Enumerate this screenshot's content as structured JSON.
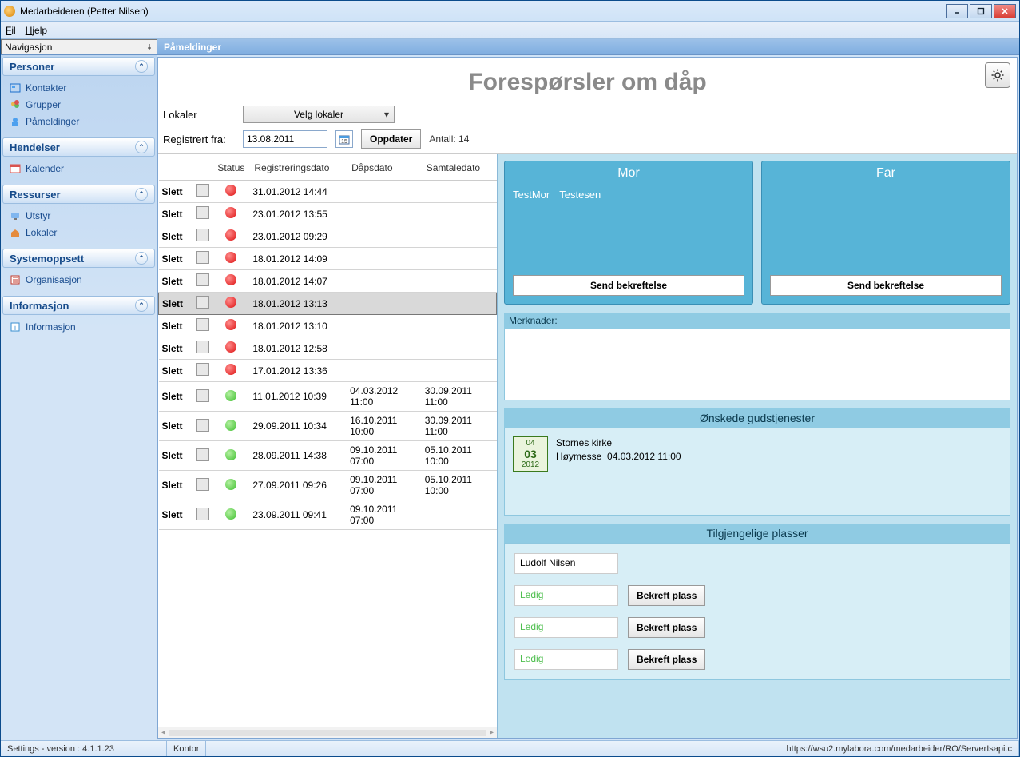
{
  "window": {
    "title": "Medarbeideren (Petter Nilsen)"
  },
  "menu": {
    "file": "Fil",
    "help": "Hjelp",
    "file_u": "F",
    "help_u": "H"
  },
  "nav": {
    "header": "Navigasjon",
    "tab": "Påmeldinger",
    "groups": {
      "personer": "Personer",
      "hendelser": "Hendelser",
      "ressurser": "Ressurser",
      "systemoppsett": "Systemoppsett",
      "informasjon": "Informasjon"
    },
    "items": {
      "kontakter": "Kontakter",
      "grupper": "Grupper",
      "pameldinger": "Påmeldinger",
      "kalender": "Kalender",
      "utstyr": "Utstyr",
      "lokaler": "Lokaler",
      "organisasjon": "Organisasjon",
      "informasjon": "Informasjon"
    }
  },
  "page": {
    "title": "Forespørsler om dåp"
  },
  "filters": {
    "lokaler_label": "Lokaler",
    "lokaler_combo": "Velg lokaler",
    "registrert_label": "Registrert fra:",
    "date_value": "13.08.2011",
    "update_btn": "Oppdater",
    "count_label": "Antall:",
    "count": "14"
  },
  "grid": {
    "headers": {
      "status": "Status",
      "registrert": "Registreringsdato",
      "dap": "Dåpsdato",
      "samtale": "Samtaledato"
    },
    "delete_label": "Slett",
    "rows": [
      {
        "status": "red",
        "reg": "31.01.2012 14:44",
        "dap": "",
        "samt": "",
        "sel": false
      },
      {
        "status": "red",
        "reg": "23.01.2012 13:55",
        "dap": "",
        "samt": "",
        "sel": false
      },
      {
        "status": "red",
        "reg": "23.01.2012 09:29",
        "dap": "",
        "samt": "",
        "sel": false
      },
      {
        "status": "red",
        "reg": "18.01.2012 14:09",
        "dap": "",
        "samt": "",
        "sel": false
      },
      {
        "status": "red",
        "reg": "18.01.2012 14:07",
        "dap": "",
        "samt": "",
        "sel": false
      },
      {
        "status": "red",
        "reg": "18.01.2012 13:13",
        "dap": "",
        "samt": "",
        "sel": true
      },
      {
        "status": "red",
        "reg": "18.01.2012 13:10",
        "dap": "",
        "samt": "",
        "sel": false
      },
      {
        "status": "red",
        "reg": "18.01.2012 12:58",
        "dap": "",
        "samt": "",
        "sel": false
      },
      {
        "status": "red",
        "reg": "17.01.2012 13:36",
        "dap": "",
        "samt": "",
        "sel": false
      },
      {
        "status": "green",
        "reg": "11.01.2012 10:39",
        "dap": "04.03.2012 11:00",
        "samt": "30.09.2011 11:00",
        "sel": false
      },
      {
        "status": "green",
        "reg": "29.09.2011 10:34",
        "dap": "16.10.2011 10:00",
        "samt": "30.09.2011 11:00",
        "sel": false
      },
      {
        "status": "green",
        "reg": "28.09.2011 14:38",
        "dap": "09.10.2011 07:00",
        "samt": "05.10.2011 10:00",
        "sel": false
      },
      {
        "status": "green",
        "reg": "27.09.2011 09:26",
        "dap": "09.10.2011 07:00",
        "samt": "05.10.2011 10:00",
        "sel": false
      },
      {
        "status": "green",
        "reg": "23.09.2011 09:41",
        "dap": "09.10.2011 07:00",
        "samt": "",
        "sel": false
      }
    ]
  },
  "parents": {
    "mor_title": "Mor",
    "far_title": "Far",
    "mor_first": "TestMor",
    "mor_last": "Testesen",
    "send_btn": "Send bekreftelse"
  },
  "notes": {
    "label": "Merknader:"
  },
  "wishes": {
    "title": "Ønskede gudstjenester",
    "chip_top": "04",
    "chip_mid": "03",
    "chip_bot": "2012",
    "church": "Stornes kirke",
    "service": "Høymesse",
    "service_dt": "04.03.2012 11:00"
  },
  "avail": {
    "title": "Tilgjengelige plasser",
    "taken": "Ludolf Nilsen",
    "free_label": "Ledig",
    "confirm_btn": "Bekreft plass"
  },
  "status": {
    "left": "Settings - version : 4.1.1.23",
    "mid": "Kontor",
    "url": "https://wsu2.mylabora.com/medarbeider/RO/ServerIsapi.c"
  },
  "colors": {
    "accent": "#57b4d7",
    "sidebar_text": "#1a4d8f"
  }
}
